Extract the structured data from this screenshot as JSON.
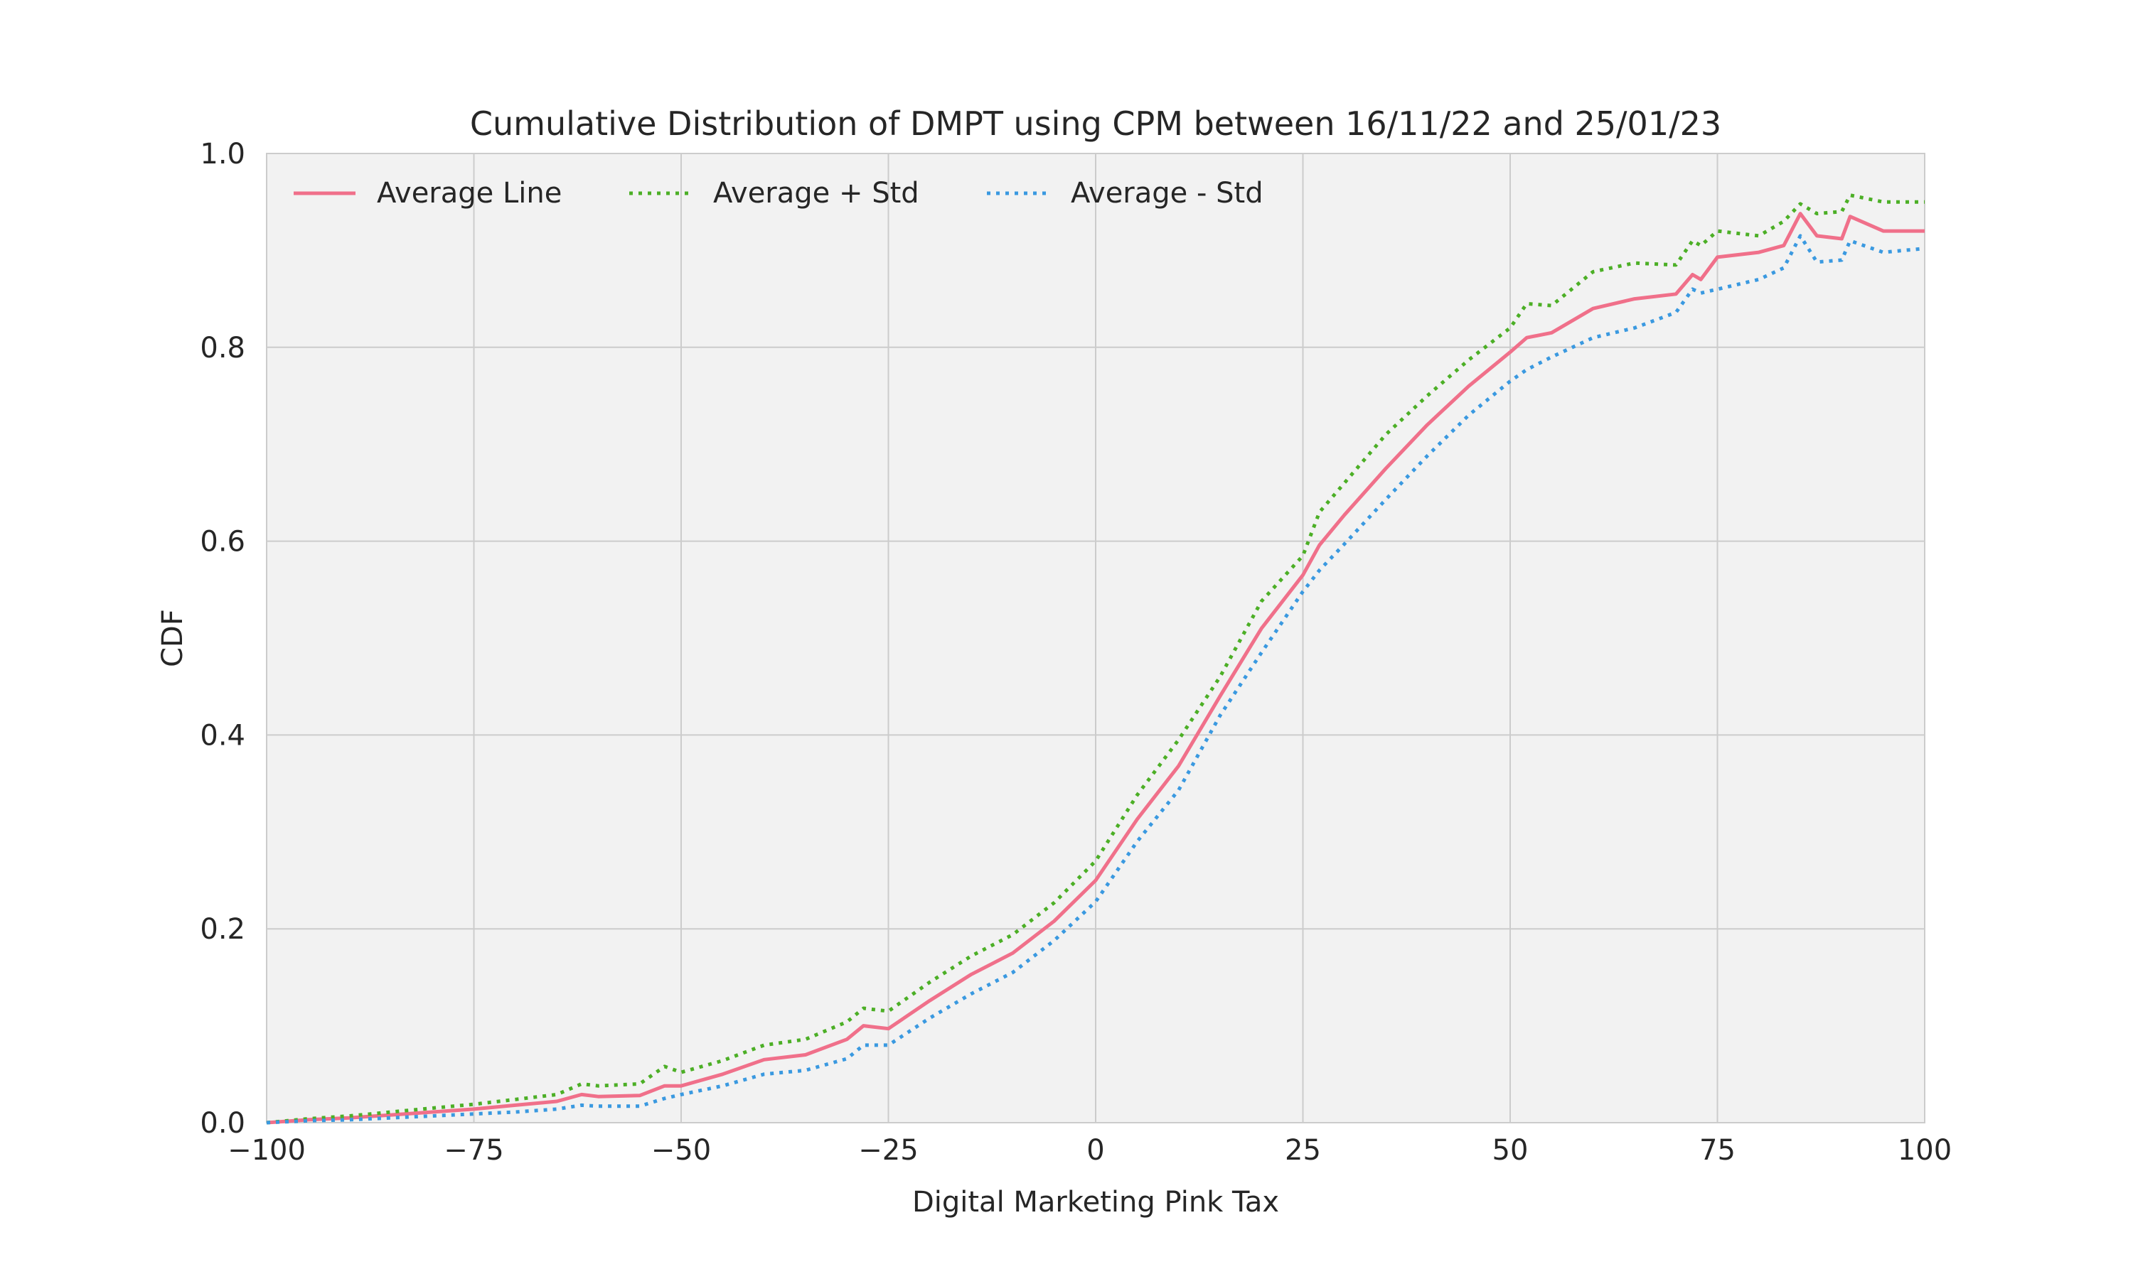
{
  "chart_data": {
    "type": "line",
    "title": "Cumulative Distribution of DMPT using CPM between 16/11/22 and 25/01/23",
    "xlabel": "Digital Marketing Pink Tax",
    "ylabel": "CDF",
    "xlim": [
      -100,
      100
    ],
    "ylim": [
      0.0,
      1.0
    ],
    "x_ticks": [
      -100,
      -75,
      -50,
      -25,
      0,
      25,
      50,
      75,
      100
    ],
    "x_tick_labels": [
      "−100",
      "−75",
      "−50",
      "−25",
      "0",
      "25",
      "50",
      "75",
      "100"
    ],
    "y_ticks": [
      0.0,
      0.2,
      0.4,
      0.6,
      0.8,
      1.0
    ],
    "y_tick_labels": [
      "0.0",
      "0.2",
      "0.4",
      "0.6",
      "0.8",
      "1.0"
    ],
    "grid": true,
    "legend_position": "top-left",
    "x": [
      -100,
      -95,
      -90,
      -85,
      -80,
      -75,
      -70,
      -65,
      -62,
      -60,
      -55,
      -52,
      -50,
      -45,
      -40,
      -35,
      -30,
      -28,
      -25,
      -20,
      -15,
      -10,
      -5,
      0,
      5,
      10,
      15,
      20,
      25,
      27,
      30,
      35,
      40,
      45,
      50,
      52,
      55,
      60,
      65,
      70,
      72,
      73,
      75,
      80,
      83,
      85,
      87,
      90,
      91,
      95,
      100
    ],
    "series": [
      {
        "name": "Average Line",
        "color": "#f0708a",
        "style": "solid",
        "values": [
          0.0,
          0.003,
          0.005,
          0.008,
          0.011,
          0.014,
          0.018,
          0.022,
          0.029,
          0.027,
          0.028,
          0.038,
          0.038,
          0.05,
          0.065,
          0.07,
          0.086,
          0.1,
          0.097,
          0.126,
          0.153,
          0.175,
          0.208,
          0.25,
          0.313,
          0.368,
          0.44,
          0.51,
          0.565,
          0.596,
          0.627,
          0.675,
          0.72,
          0.76,
          0.795,
          0.81,
          0.815,
          0.84,
          0.85,
          0.855,
          0.875,
          0.87,
          0.893,
          0.898,
          0.905,
          0.938,
          0.915,
          0.912,
          0.935,
          0.92,
          0.92
        ]
      },
      {
        "name": "Average + Std",
        "color": "#4caf26",
        "style": "dotted",
        "values": [
          0.0,
          0.004,
          0.007,
          0.011,
          0.015,
          0.019,
          0.024,
          0.029,
          0.04,
          0.038,
          0.04,
          0.058,
          0.052,
          0.064,
          0.08,
          0.086,
          0.104,
          0.118,
          0.115,
          0.145,
          0.172,
          0.194,
          0.227,
          0.27,
          0.338,
          0.395,
          0.46,
          0.538,
          0.585,
          0.63,
          0.66,
          0.71,
          0.75,
          0.787,
          0.82,
          0.845,
          0.843,
          0.878,
          0.887,
          0.885,
          0.91,
          0.905,
          0.92,
          0.915,
          0.93,
          0.948,
          0.938,
          0.94,
          0.957,
          0.95,
          0.95
        ]
      },
      {
        "name": "Average - Std",
        "color": "#3a99e0",
        "style": "dotted",
        "values": [
          0.0,
          0.002,
          0.003,
          0.005,
          0.007,
          0.009,
          0.011,
          0.014,
          0.018,
          0.017,
          0.017,
          0.025,
          0.029,
          0.038,
          0.05,
          0.054,
          0.066,
          0.08,
          0.08,
          0.108,
          0.133,
          0.155,
          0.188,
          0.228,
          0.29,
          0.343,
          0.42,
          0.485,
          0.548,
          0.57,
          0.597,
          0.643,
          0.688,
          0.73,
          0.765,
          0.777,
          0.79,
          0.81,
          0.82,
          0.836,
          0.86,
          0.856,
          0.86,
          0.87,
          0.882,
          0.915,
          0.888,
          0.89,
          0.91,
          0.898,
          0.902
        ]
      }
    ]
  }
}
